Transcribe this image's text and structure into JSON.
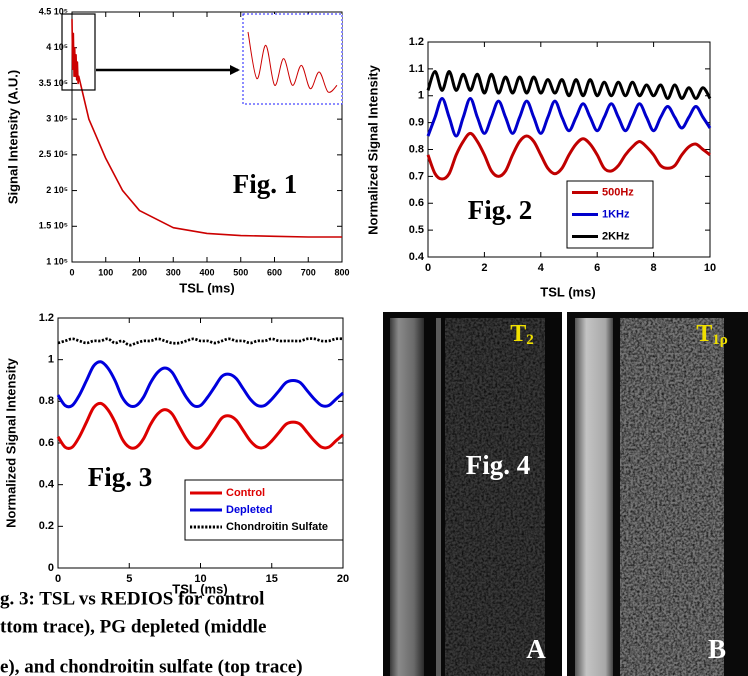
{
  "chart_data": [
    {
      "type": "line",
      "annotation": "Fig. 1",
      "xlabel": "TSL (ms)",
      "ylabel": "Signal Intensity (A.U.)",
      "x": [
        0,
        2,
        4,
        6,
        8,
        10,
        12,
        14,
        16,
        18,
        20,
        50,
        100,
        150,
        200,
        300,
        400,
        500,
        600,
        700,
        800
      ],
      "series": [
        {
          "color": "#cc0000",
          "values": [
            440000,
            370000,
            420000,
            360000,
            400000,
            360000,
            390000,
            355000,
            380000,
            350000,
            360000,
            300000,
            245000,
            200000,
            172000,
            148000,
            140000,
            137000,
            136000,
            135000,
            135000
          ]
        }
      ],
      "xlim": [
        0,
        800
      ],
      "xticks": [
        0,
        100,
        200,
        300,
        400,
        500,
        600,
        700,
        800
      ],
      "ylim": [
        100000,
        450000
      ],
      "yticks": [
        {
          "value": 100000,
          "label": "1 10⁵"
        },
        {
          "value": 150000,
          "label": "1.5 10⁵"
        },
        {
          "value": 200000,
          "label": "2 10⁵"
        },
        {
          "value": 250000,
          "label": "2.5 10⁵"
        },
        {
          "value": 300000,
          "label": "3 10⁵"
        },
        {
          "value": 350000,
          "label": "3.5 10⁵"
        },
        {
          "value": 400000,
          "label": "4 10⁵"
        },
        {
          "value": 450000,
          "label": "4.5 10⁵"
        }
      ]
    },
    {
      "type": "line",
      "annotation": "Fig. 2",
      "xlabel": "TSL (ms)",
      "ylabel": "Normalized Signal Intensity",
      "legend": "lower right",
      "x": [
        0,
        0.25,
        0.5,
        0.75,
        1,
        1.25,
        1.5,
        1.75,
        2,
        2.25,
        2.5,
        2.75,
        3,
        3.25,
        3.5,
        3.75,
        4,
        4.25,
        4.5,
        4.75,
        5,
        5.25,
        5.5,
        5.75,
        6,
        6.25,
        6.5,
        6.75,
        7,
        7.25,
        7.5,
        7.75,
        8,
        8.25,
        8.5,
        8.75,
        9,
        9.25,
        9.5,
        9.75,
        10
      ],
      "series": [
        {
          "name": "500Hz",
          "color": "#c00000",
          "values": [
            0.78,
            0.71,
            0.69,
            0.71,
            0.78,
            0.83,
            0.86,
            0.83,
            0.78,
            0.72,
            0.7,
            0.72,
            0.78,
            0.83,
            0.85,
            0.83,
            0.78,
            0.73,
            0.71,
            0.73,
            0.78,
            0.82,
            0.84,
            0.82,
            0.78,
            0.73,
            0.72,
            0.74,
            0.78,
            0.81,
            0.83,
            0.81,
            0.78,
            0.74,
            0.73,
            0.74,
            0.78,
            0.81,
            0.82,
            0.8,
            0.78
          ]
        },
        {
          "name": "1KHz",
          "color": "#0000cc",
          "values": [
            0.85,
            0.92,
            0.99,
            0.92,
            0.85,
            0.92,
            0.99,
            0.92,
            0.86,
            0.92,
            0.98,
            0.92,
            0.86,
            0.92,
            0.98,
            0.92,
            0.86,
            0.92,
            0.98,
            0.92,
            0.87,
            0.92,
            0.97,
            0.92,
            0.87,
            0.92,
            0.97,
            0.92,
            0.87,
            0.92,
            0.97,
            0.92,
            0.87,
            0.92,
            0.96,
            0.92,
            0.88,
            0.92,
            0.96,
            0.92,
            0.88
          ]
        },
        {
          "name": "2KHz",
          "color": "#000000",
          "values": [
            1.02,
            1.09,
            1.02,
            1.09,
            1.02,
            1.08,
            1.02,
            1.08,
            1.01,
            1.08,
            1.01,
            1.07,
            1.01,
            1.07,
            1.01,
            1.07,
            1.01,
            1.06,
            1.01,
            1.06,
            1.0,
            1.06,
            1.0,
            1.06,
            1.0,
            1.05,
            1.0,
            1.05,
            1.0,
            1.05,
            1.0,
            1.04,
            1.0,
            1.04,
            0.99,
            1.04,
            0.99,
            1.03,
            0.99,
            1.03,
            0.99
          ]
        }
      ],
      "xlim": [
        0,
        10
      ],
      "xticks": [
        0,
        2,
        4,
        6,
        8,
        10
      ],
      "ylim": [
        0.4,
        1.2
      ],
      "yticks": [
        0.4,
        0.5,
        0.6,
        0.7,
        0.8,
        0.9,
        1,
        1.1,
        1.2
      ]
    },
    {
      "type": "line",
      "annotation": "Fig. 3",
      "xlabel": "TSL (ms)",
      "ylabel": "Normalized Signal Intensity",
      "legend": "lower right",
      "x": [
        0,
        0.5,
        1,
        1.5,
        2,
        2.5,
        3,
        3.5,
        4,
        4.5,
        5,
        5.5,
        6,
        6.5,
        7,
        7.5,
        8,
        8.5,
        9,
        9.5,
        10,
        10.5,
        11,
        11.5,
        12,
        12.5,
        13,
        13.5,
        14,
        14.5,
        15,
        15.5,
        16,
        16.5,
        17,
        17.5,
        18,
        18.5,
        19,
        19.5,
        20
      ],
      "series": [
        {
          "name": "Control",
          "color": "#dd0000",
          "values": [
            0.63,
            0.58,
            0.58,
            0.63,
            0.7,
            0.77,
            0.79,
            0.76,
            0.7,
            0.62,
            0.58,
            0.58,
            0.62,
            0.69,
            0.74,
            0.76,
            0.74,
            0.68,
            0.62,
            0.58,
            0.58,
            0.62,
            0.67,
            0.72,
            0.73,
            0.71,
            0.66,
            0.61,
            0.58,
            0.58,
            0.61,
            0.65,
            0.69,
            0.7,
            0.69,
            0.65,
            0.61,
            0.58,
            0.58,
            0.61,
            0.64
          ]
        },
        {
          "name": "Depleted",
          "color": "#0000dd",
          "values": [
            0.83,
            0.78,
            0.78,
            0.83,
            0.9,
            0.97,
            0.99,
            0.96,
            0.9,
            0.82,
            0.78,
            0.78,
            0.82,
            0.89,
            0.94,
            0.96,
            0.94,
            0.88,
            0.82,
            0.78,
            0.78,
            0.82,
            0.87,
            0.92,
            0.93,
            0.91,
            0.86,
            0.81,
            0.78,
            0.78,
            0.81,
            0.85,
            0.89,
            0.9,
            0.89,
            0.85,
            0.81,
            0.78,
            0.78,
            0.81,
            0.84
          ]
        },
        {
          "name": "Chondroitin Sulfate",
          "color": "#000000",
          "linestyle": "dotted",
          "values": [
            1.08,
            1.09,
            1.1,
            1.09,
            1.08,
            1.09,
            1.09,
            1.1,
            1.08,
            1.09,
            1.07,
            1.08,
            1.09,
            1.09,
            1.1,
            1.09,
            1.08,
            1.08,
            1.09,
            1.1,
            1.09,
            1.09,
            1.08,
            1.09,
            1.1,
            1.09,
            1.09,
            1.08,
            1.09,
            1.09,
            1.1,
            1.09,
            1.09,
            1.09,
            1.09,
            1.1,
            1.1,
            1.09,
            1.09,
            1.1,
            1.1
          ]
        }
      ],
      "xlim": [
        0,
        20
      ],
      "xticks": [
        0,
        5,
        10,
        15,
        20
      ],
      "ylim": [
        0,
        1.2
      ],
      "yticks": [
        0,
        0.2,
        0.4,
        0.6,
        0.8,
        1,
        1.2
      ]
    }
  ],
  "figure4": {
    "title": "Fig. 4",
    "panels": [
      {
        "symbol": "T",
        "subscript": "2",
        "letter": "A"
      },
      {
        "symbol": "T",
        "subscript": "1ρ",
        "letter": "B"
      }
    ]
  },
  "caption": [
    "g. 3: TSL vs REDIOS for control",
    "ttom trace), PG depleted (middle",
    "e), and chondroitin sulfate (top trace)"
  ]
}
